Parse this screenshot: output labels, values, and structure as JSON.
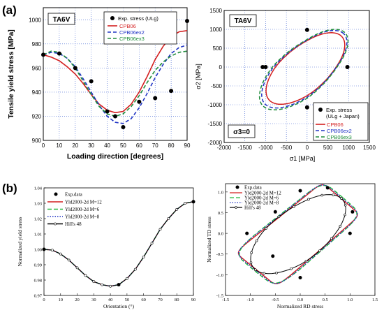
{
  "labels": {
    "a": "(a)",
    "b": "(b)"
  },
  "chart_data": [
    {
      "id": "a1",
      "type": "line",
      "panel_label": "(a)",
      "inset_title": "TA6V",
      "xlabel": "Loading direction [degrees]",
      "ylabel": "Tensile yield stress [MPa]",
      "xlim": [
        0,
        90
      ],
      "ylim": [
        900,
        1010
      ],
      "xticks": [
        0,
        10,
        20,
        30,
        40,
        50,
        60,
        70,
        80,
        90
      ],
      "yticks": [
        900,
        920,
        940,
        960,
        980,
        1000
      ],
      "grid": true,
      "legend_position": "top-right",
      "legend_labels": [
        "Exp. stress (ULg)",
        "CPB06",
        "CPB06ex2",
        "CPB06ex3"
      ],
      "points": {
        "name": "Exp. stress (ULg)",
        "x": [
          0,
          10,
          20,
          30,
          40,
          45,
          50,
          60,
          70,
          80,
          90
        ],
        "y": [
          971,
          972,
          960,
          949,
          924,
          920,
          911,
          932,
          935,
          941,
          999
        ]
      },
      "series": [
        {
          "name": "CPB06",
          "color": "#d42020",
          "dash": "",
          "x": [
            0,
            5,
            10,
            15,
            20,
            25,
            30,
            35,
            40,
            45,
            50,
            55,
            60,
            65,
            70,
            75,
            80,
            85,
            90
          ],
          "y": [
            971,
            969,
            966,
            961,
            955,
            947,
            938,
            930,
            925,
            923,
            924,
            930,
            940,
            953,
            967,
            978,
            986,
            990,
            991
          ]
        },
        {
          "name": "CPB06ex2",
          "color": "#1f33c4",
          "dash": "5,3",
          "x": [
            0,
            5,
            10,
            15,
            20,
            25,
            30,
            35,
            40,
            45,
            50,
            55,
            60,
            65,
            70,
            75,
            80,
            85,
            90
          ],
          "y": [
            971,
            973,
            972,
            968,
            961,
            951,
            940,
            929,
            920,
            915,
            914,
            918,
            927,
            939,
            952,
            963,
            972,
            977,
            979
          ]
        },
        {
          "name": "CPB06ex3",
          "color": "#1e8c3a",
          "dash": "5,3",
          "x": [
            0,
            5,
            10,
            15,
            20,
            25,
            30,
            35,
            40,
            45,
            50,
            55,
            60,
            65,
            70,
            75,
            80,
            85,
            90
          ],
          "y": [
            971,
            974,
            973,
            968,
            960,
            949,
            938,
            928,
            922,
            920,
            922,
            928,
            937,
            948,
            958,
            965,
            970,
            973,
            974
          ]
        }
      ]
    },
    {
      "id": "a2",
      "type": "line",
      "inset_title": "TA6V",
      "xlabel": "σ1 [MPa]",
      "ylabel": "σ2 [MPa]",
      "annotation": "σ3=0",
      "xlim": [
        -2000,
        1500
      ],
      "ylim": [
        -2000,
        1500
      ],
      "xticks": [
        -2000,
        -1500,
        -1000,
        -500,
        0,
        500,
        1000,
        1500
      ],
      "yticks": [
        -2000,
        -1500,
        -1000,
        -500,
        0,
        500,
        1000,
        1500
      ],
      "grid": true,
      "legend_position": "bottom-right",
      "legend_labels": [
        "Exp. stress",
        "(ULg + Japan)",
        "CPB06",
        "CPB06ex2",
        "CPB06ex3"
      ],
      "points": {
        "name": "Exp. stress (ULg + Japan)",
        "x": [
          971,
          0,
          -1070,
          0,
          -1000
        ],
        "y": [
          0,
          985,
          0,
          -1070,
          0
        ]
      },
      "series": [
        {
          "name": "CPB06",
          "color": "#d42020",
          "dash": "",
          "shape": {
            "a": 1215,
            "b": 570,
            "x0": 1000,
            "x90": 1010,
            "x180": 1090,
            "x270": 1095
          }
        },
        {
          "name": "CPB06ex2",
          "color": "#1f33c4",
          "dash": "5,3",
          "shape": {
            "a": 1330,
            "b": 585,
            "x0": 1000,
            "x90": 1020,
            "x180": 1140,
            "x270": 1140
          }
        },
        {
          "name": "CPB06ex3",
          "color": "#1e8c3a",
          "dash": "5,3",
          "shape": {
            "a": 1385,
            "b": 600,
            "x0": 1010,
            "x90": 1035,
            "x180": 1175,
            "x270": 1175
          }
        }
      ]
    },
    {
      "id": "b1",
      "type": "line",
      "panel_label": "(b)",
      "xlabel": "Orientation (°)",
      "ylabel": "Normalized yield stress",
      "xlim": [
        0,
        90
      ],
      "ylim": [
        0.97,
        1.04
      ],
      "xticks": [
        0,
        10,
        20,
        30,
        40,
        50,
        60,
        70,
        80,
        90
      ],
      "yticks": [
        0.97,
        0.98,
        0.99,
        1.0,
        1.01,
        1.02,
        1.03,
        1.04
      ],
      "ytick_labels": [
        "0.97",
        "0.98",
        "0.99",
        "1.00",
        "1.01",
        "1.02",
        "1.03",
        "1.04"
      ],
      "grid": false,
      "legend_position": "top-left",
      "legend_labels": [
        "Exp.data",
        "Yld2000-2d M=12",
        "Yld2000-2d M=6",
        "Yld2000-2d M=8",
        "Hill's 48"
      ],
      "points": {
        "name": "Exp.data",
        "x": [
          0,
          45,
          90
        ],
        "y": [
          1.0,
          0.977,
          1.031
        ]
      },
      "series": [
        {
          "name": "Yld2000-2d M=12",
          "color": "#d42020",
          "dash": "",
          "x": [
            0,
            5,
            10,
            15,
            20,
            25,
            30,
            35,
            40,
            45,
            50,
            55,
            60,
            65,
            70,
            75,
            80,
            85,
            90
          ],
          "y": [
            1.0,
            0.9995,
            0.997,
            0.993,
            0.988,
            0.983,
            0.979,
            0.977,
            0.976,
            0.977,
            0.981,
            0.987,
            0.995,
            1.004,
            1.013,
            1.02,
            1.026,
            1.03,
            1.031
          ]
        },
        {
          "name": "Yld2000-2d M=6",
          "color": "#23b83c",
          "dash": "6,3",
          "x": [
            0,
            5,
            10,
            15,
            20,
            25,
            30,
            35,
            40,
            45,
            50,
            55,
            60,
            65,
            70,
            75,
            80,
            85,
            90
          ],
          "y": [
            1.0,
            0.9995,
            0.997,
            0.993,
            0.988,
            0.983,
            0.979,
            0.977,
            0.976,
            0.977,
            0.981,
            0.987,
            0.995,
            1.004,
            1.013,
            1.02,
            1.026,
            1.03,
            1.031
          ]
        },
        {
          "name": "Yld2000-2d M=8",
          "color": "#1f33c4",
          "dash": "1.5,2",
          "x": [
            0,
            5,
            10,
            15,
            20,
            25,
            30,
            35,
            40,
            45,
            50,
            55,
            60,
            65,
            70,
            75,
            80,
            85,
            90
          ],
          "y": [
            1.0,
            0.9995,
            0.997,
            0.993,
            0.988,
            0.983,
            0.979,
            0.977,
            0.976,
            0.977,
            0.981,
            0.987,
            0.995,
            1.004,
            1.013,
            1.02,
            1.026,
            1.03,
            1.031
          ]
        },
        {
          "name": "Hill's 48",
          "color": "#000000",
          "dash": "",
          "marker": "circle-open",
          "x": [
            0,
            5,
            10,
            15,
            20,
            25,
            30,
            35,
            40,
            45,
            50,
            55,
            60,
            65,
            70,
            75,
            80,
            85,
            90
          ],
          "y": [
            1.0,
            0.9995,
            0.997,
            0.993,
            0.988,
            0.983,
            0.979,
            0.977,
            0.976,
            0.977,
            0.981,
            0.987,
            0.995,
            1.004,
            1.013,
            1.02,
            1.026,
            1.03,
            1.031
          ]
        }
      ]
    },
    {
      "id": "b2",
      "type": "line",
      "xlabel": "Normalized RD stress",
      "ylabel": "Normalized TD stress",
      "xlim": [
        -1.5,
        1.5
      ],
      "ylim": [
        -1.5,
        1.2
      ],
      "xticks": [
        -1.5,
        -1.0,
        -0.5,
        0.0,
        0.5,
        1.0,
        1.5
      ],
      "xtick_labels": [
        "-1.5",
        "-1.0",
        "-0.5",
        "0.0",
        "0.5",
        "1.0",
        "1.5"
      ],
      "yticks": [
        -1.5,
        -1.0,
        -0.5,
        0.0,
        0.5,
        1.0
      ],
      "ytick_labels": [
        "-1.5",
        "-1.0",
        "-0.5",
        "0.0",
        "0.5",
        "1.0"
      ],
      "grid": false,
      "legend_position": "top-left",
      "legend_labels": [
        "Exp.data",
        "Yld2000-2d M=12",
        "Yld2000-2d M=6",
        "Yld2000-2d M=8",
        "Hill's 48"
      ],
      "points": {
        "name": "Exp.data",
        "x": [
          1.0,
          0.0,
          -1.07,
          0.0,
          0.55,
          -0.55,
          1.05,
          -0.5
        ],
        "y": [
          0.0,
          1.03,
          0.0,
          -1.07,
          1.1,
          -0.55,
          0.52,
          0.52
        ]
      },
      "series": [
        {
          "name": "Yld2000-2d M=12",
          "color": "#d42020",
          "dash": "",
          "shape": {
            "a": 1.21,
            "b": 0.57,
            "x0": 1.0,
            "x90": 1.03,
            "x180": 1.08,
            "x270": 1.07,
            "sharp": 12
          }
        },
        {
          "name": "Yld2000-2d M=6",
          "color": "#23b83c",
          "dash": "6,3",
          "shape": {
            "a": 1.25,
            "b": 0.6,
            "x0": 1.04,
            "x90": 1.06,
            "x180": 1.12,
            "x270": 1.1,
            "sharp": 6
          }
        },
        {
          "name": "Yld2000-2d M=8",
          "color": "#1f33c4",
          "dash": "1.5,2",
          "shape": {
            "a": 1.23,
            "b": 0.59,
            "x0": 1.02,
            "x90": 1.05,
            "x180": 1.1,
            "x270": 1.09,
            "sharp": 8
          }
        },
        {
          "name": "Hill's 48",
          "color": "#000000",
          "dash": "",
          "marker": "circle-open",
          "shape": {
            "a": 1.22,
            "b": 0.58,
            "x0": 1.0,
            "x90": 1.04,
            "x180": 1.09,
            "x270": 1.08,
            "sharp": 2
          }
        }
      ]
    }
  ]
}
